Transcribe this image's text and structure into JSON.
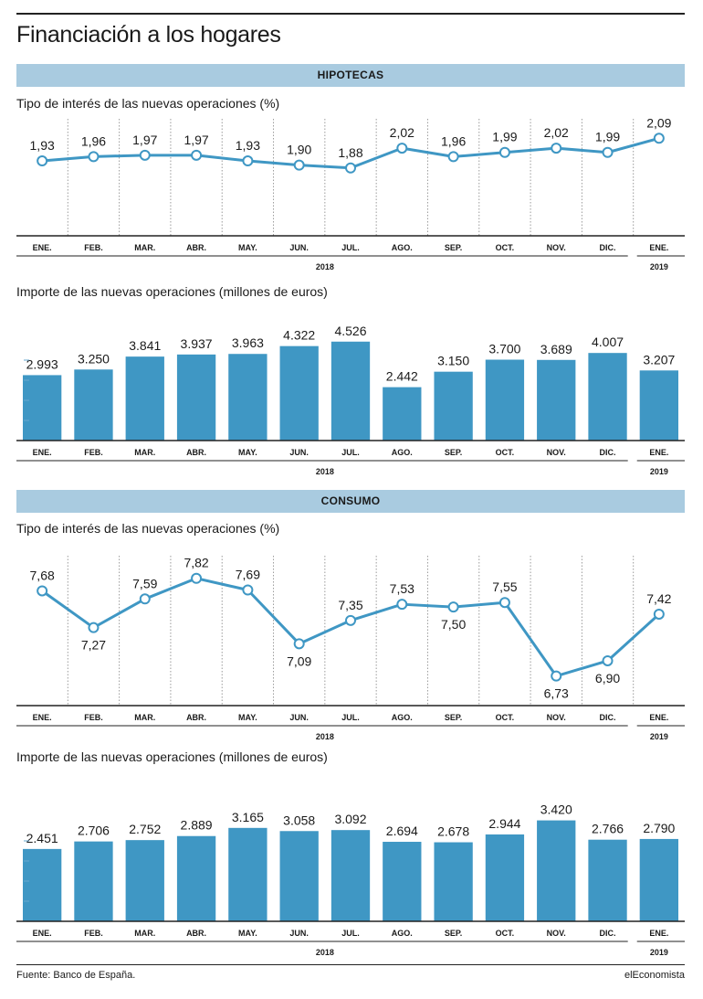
{
  "title": "Financiación a los hogares",
  "source": "Fuente: Banco de España.",
  "brand": "elEconomista",
  "colors": {
    "series": "#3f97c4",
    "band": "#a9cbe0",
    "text": "#1a1a1a"
  },
  "months": [
    "ENE.",
    "FEB.",
    "MAR.",
    "ABR.",
    "MAY.",
    "JUN.",
    "JUL.",
    "AGO.",
    "SEP.",
    "OCT.",
    "NOV.",
    "DIC.",
    "ENE."
  ],
  "year_2018": "2018",
  "year_2019": "2019",
  "sections": [
    {
      "label": "HIPOTECAS"
    },
    {
      "label": "CONSUMO"
    }
  ],
  "chart_data": [
    {
      "type": "line",
      "section": "HIPOTECAS",
      "title": "Tipo de interés de las nuevas operaciones (%)",
      "categories": [
        "ENE.",
        "FEB.",
        "MAR.",
        "ABR.",
        "MAY.",
        "JUN.",
        "JUL.",
        "AGO.",
        "SEP.",
        "OCT.",
        "NOV.",
        "DIC.",
        "ENE."
      ],
      "values": [
        1.93,
        1.96,
        1.97,
        1.97,
        1.93,
        1.9,
        1.88,
        2.02,
        1.96,
        1.99,
        2.02,
        1.99,
        2.09
      ],
      "labels": [
        "1,93",
        "1,96",
        "1,97",
        "1,97",
        "1,93",
        "1,90",
        "1,88",
        "2,02",
        "1,96",
        "1,99",
        "2,02",
        "1,99",
        "2,09"
      ],
      "ylim": [
        1.4,
        2.15
      ],
      "grid": "vertical-dotted"
    },
    {
      "type": "bar",
      "section": "HIPOTECAS",
      "title": "Importe de las nuevas operaciones (millones de euros)",
      "categories": [
        "ENE.",
        "FEB.",
        "MAR.",
        "ABR.",
        "MAY.",
        "JUN.",
        "JUL.",
        "AGO.",
        "SEP.",
        "OCT.",
        "NOV.",
        "DIC.",
        "ENE."
      ],
      "values": [
        2993,
        3250,
        3841,
        3937,
        3963,
        4322,
        4526,
        2442,
        3150,
        3700,
        3689,
        4007,
        3207
      ],
      "labels": [
        "2.993",
        "3.250",
        "3.841",
        "3.937",
        "3.963",
        "4.322",
        "4.526",
        "2.442",
        "3.150",
        "3.700",
        "3.689",
        "4.007",
        "3.207"
      ],
      "ylim": [
        0,
        4600
      ]
    },
    {
      "type": "line",
      "section": "CONSUMO",
      "title": "Tipo de interés de las nuevas operaciones (%)",
      "categories": [
        "ENE.",
        "FEB.",
        "MAR.",
        "ABR.",
        "MAY.",
        "JUN.",
        "JUL.",
        "AGO.",
        "SEP.",
        "OCT.",
        "NOV.",
        "DIC.",
        "ENE."
      ],
      "values": [
        7.68,
        7.27,
        7.59,
        7.82,
        7.69,
        7.09,
        7.35,
        7.53,
        7.5,
        7.55,
        6.73,
        6.9,
        7.42
      ],
      "labels": [
        "7,68",
        "7,27",
        "7,59",
        "7,82",
        "7,69",
        "7,09",
        "7,35",
        "7,53",
        "7,50",
        "7,55",
        "6,73",
        "6,90",
        "7,42"
      ],
      "label_position": [
        "above",
        "below",
        "above",
        "above",
        "above",
        "below",
        "above",
        "above",
        "below",
        "above",
        "below",
        "below",
        "above"
      ],
      "ylim": [
        6.4,
        7.95
      ],
      "grid": "vertical-dotted"
    },
    {
      "type": "bar",
      "section": "CONSUMO",
      "title": "Importe de las nuevas operaciones (millones de euros)",
      "categories": [
        "ENE.",
        "FEB.",
        "MAR.",
        "ABR.",
        "MAY.",
        "JUN.",
        "JUL.",
        "AGO.",
        "SEP.",
        "OCT.",
        "NOV.",
        "DIC.",
        "ENE."
      ],
      "values": [
        2451,
        2706,
        2752,
        2889,
        3165,
        3058,
        3092,
        2694,
        2678,
        2944,
        3420,
        2766,
        2790
      ],
      "labels": [
        "2.451",
        "2.706",
        "2.752",
        "2.889",
        "3.165",
        "3.058",
        "3.092",
        "2.694",
        "2.678",
        "2.944",
        "3.420",
        "2.766",
        "2.790"
      ],
      "ylim": [
        0,
        3500
      ]
    }
  ]
}
